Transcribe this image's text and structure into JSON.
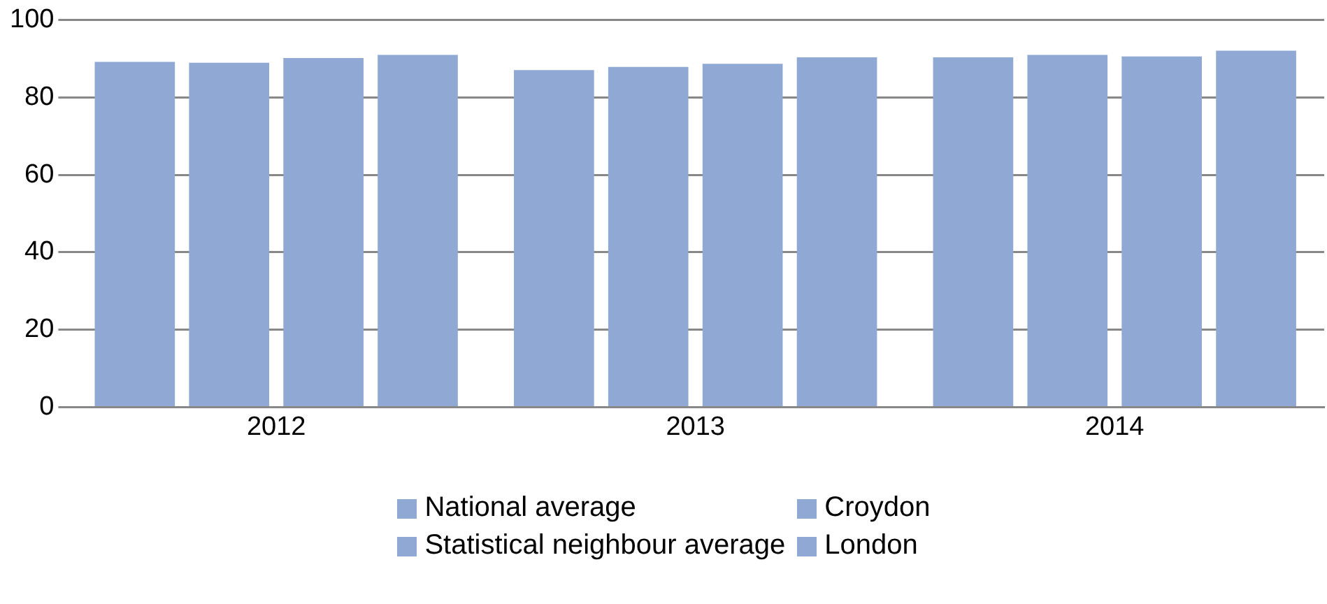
{
  "chart_data": {
    "type": "bar",
    "categories": [
      "2012",
      "2013",
      "2014"
    ],
    "series": [
      {
        "name": "National average",
        "color": "#8fa9d4",
        "values": [
          89.2,
          87.1,
          90.4
        ]
      },
      {
        "name": "Croydon",
        "color": "#8fa9d4",
        "values": [
          89,
          87.9,
          91
        ]
      },
      {
        "name": "Statistical neighbour average",
        "color": "#8fa9d4",
        "values": [
          90.2,
          88.7,
          90.6
        ]
      },
      {
        "name": "London",
        "color": "#8fa9d4",
        "values": [
          91,
          90.4,
          92.1
        ]
      }
    ],
    "ylim": [
      0,
      100
    ],
    "yticks": [
      0,
      20,
      40,
      60,
      80,
      100
    ],
    "grid": "y",
    "legend": "bottom"
  }
}
